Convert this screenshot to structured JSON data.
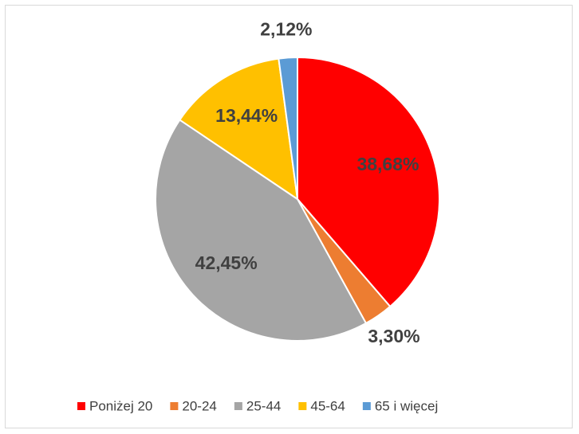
{
  "chart_data": {
    "type": "pie",
    "categories": [
      "Poniżej 20",
      "20-24",
      "25-44",
      "45-64",
      "65 i więcej"
    ],
    "values": [
      38.68,
      3.3,
      42.45,
      13.44,
      2.12
    ],
    "value_labels": [
      "38,68%",
      "3,30%",
      "42,45%",
      "13,44%",
      "2,12%"
    ],
    "colors": [
      "#ff0000",
      "#ed7d31",
      "#a5a5a5",
      "#ffc000",
      "#5b9bd5"
    ],
    "legend": "bottom"
  }
}
